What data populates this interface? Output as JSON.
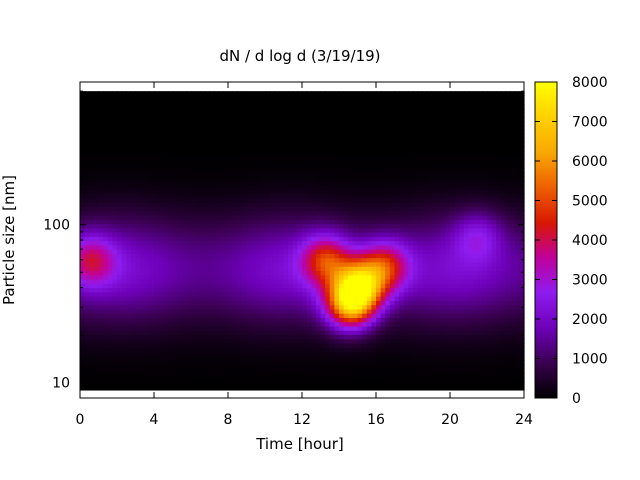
{
  "chart_data": {
    "type": "heatmap",
    "title": "dN / d log d (3/19/19)",
    "xlabel": "Time [hour]",
    "ylabel": "Particle size [nm]",
    "xlim": [
      0,
      24
    ],
    "ylim": [
      8,
      800
    ],
    "yscale": "log",
    "x_ticks": [
      "0",
      "4",
      "8",
      "12",
      "16",
      "20",
      "24"
    ],
    "x_tick_values": [
      0,
      4,
      8,
      12,
      16,
      20,
      24
    ],
    "y_ticks": [
      "10",
      "100"
    ],
    "y_tick_values": [
      10,
      100
    ],
    "colorbar": {
      "min": 0,
      "max": 8000,
      "ticks": [
        "0",
        "1000",
        "2000",
        "3000",
        "4000",
        "5000",
        "6000",
        "7000",
        "8000"
      ],
      "tick_values": [
        0,
        1000,
        2000,
        3000,
        4000,
        5000,
        6000,
        7000,
        8000
      ],
      "colormap": [
        "#000000",
        "#3a0050",
        "#6d00b8",
        "#8f1cf0",
        "#c0009a",
        "#d81800",
        "#ee6000",
        "#f8a800",
        "#ffd000",
        "#ffff00"
      ]
    },
    "data_range_y": [
      9,
      700
    ],
    "main_features": [
      {
        "x": 14.6,
        "y": 32,
        "value": 7600
      },
      {
        "x": 15.2,
        "y": 42,
        "value": 6600
      },
      {
        "x": 13.3,
        "y": 60,
        "value": 5200
      },
      {
        "x": 16.5,
        "y": 55,
        "value": 5000
      },
      {
        "x": 0.6,
        "y": 60,
        "value": 4300
      },
      {
        "x": 21.5,
        "y": 85,
        "value": 3400
      }
    ]
  }
}
